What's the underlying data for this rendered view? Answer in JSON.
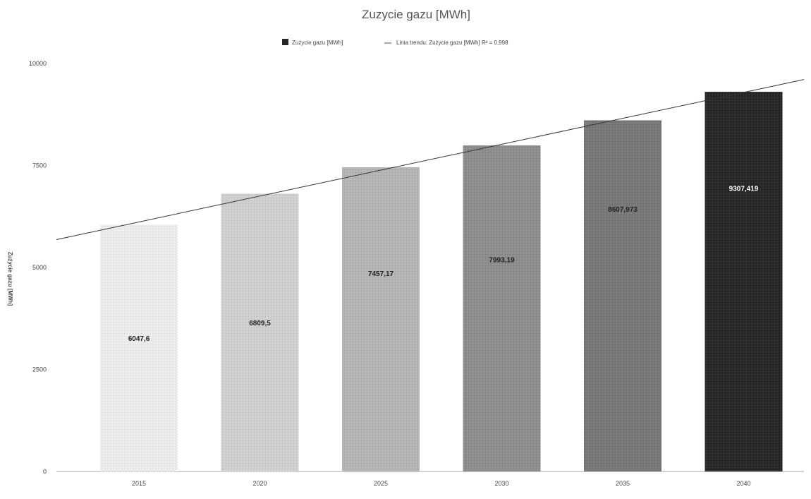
{
  "chart_data": {
    "type": "bar",
    "title": "Zuzycie gazu [MWh]",
    "xlabel": "",
    "ylabel": "Zużycie gazu [MWh]",
    "ylim": [
      0,
      10000
    ],
    "yticks": [
      "0",
      "2500",
      "5000",
      "7500",
      "10000"
    ],
    "categories": [
      "2015",
      "2020",
      "2025",
      "2030",
      "2035",
      "2040"
    ],
    "series": [
      {
        "name": "Zużycie gazu [MWh]",
        "values": [
          6047.6,
          6809.5,
          7457.17,
          7993.19,
          8607.973,
          9307.419
        ],
        "value_labels": [
          "6047,6",
          "6809,5",
          "7457,17",
          "7993,19",
          "8607,973",
          "9307,419"
        ]
      }
    ],
    "trendline": {
      "name": "Linia trendu: Zużycie gazu [MWh] R² = 0,998",
      "type": "linear",
      "r_squared": 0.998
    },
    "bar_colors": [
      "#ececec",
      "#cfcfcf",
      "#b4b4b4",
      "#8c8c8c",
      "#777777",
      "#262626"
    ],
    "grid": false,
    "legend_position": "top"
  }
}
